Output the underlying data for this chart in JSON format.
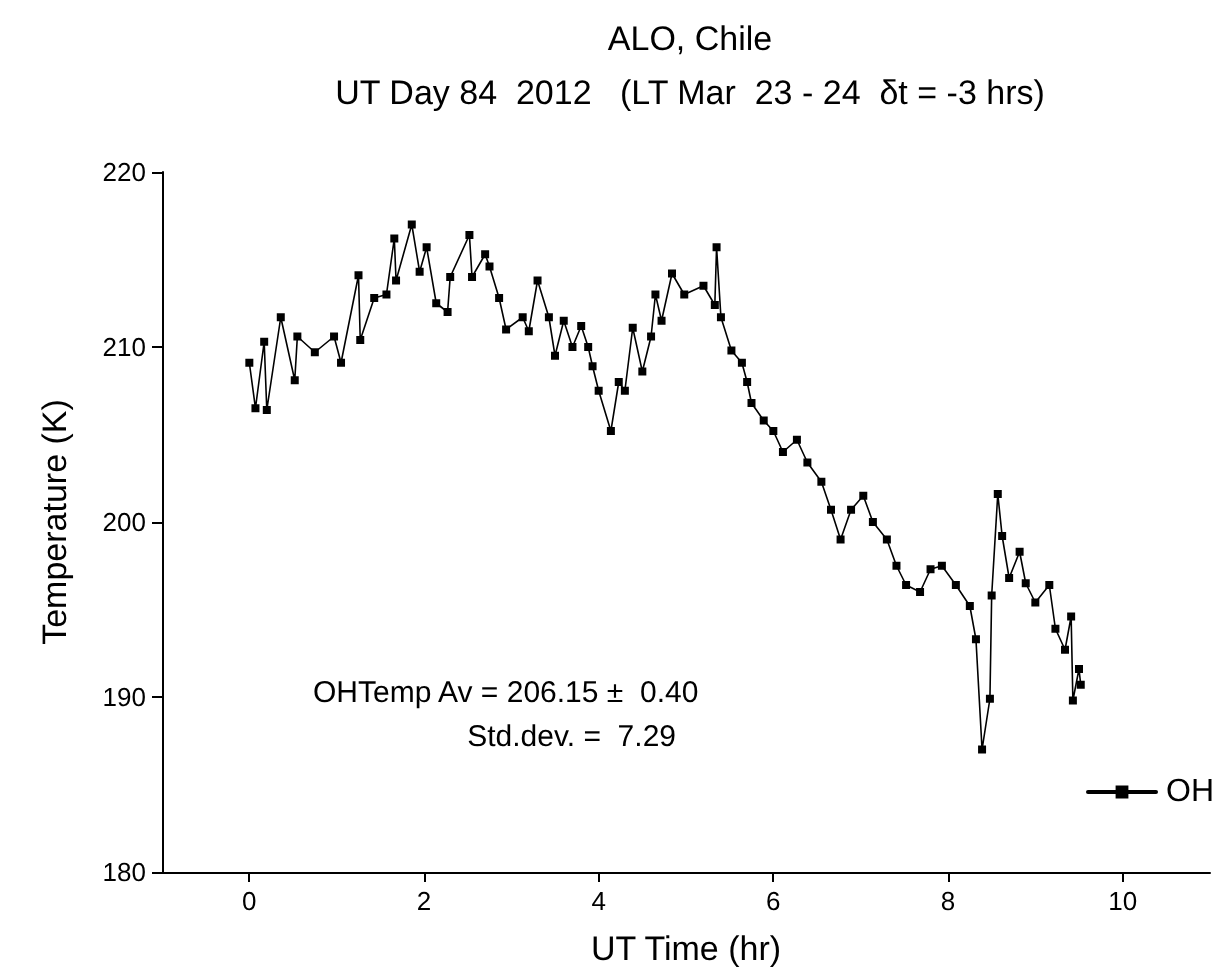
{
  "chart_data": {
    "type": "line",
    "title": "ALO, Chile",
    "subtitle": "UT Day 84  2012   (LT Mar  23 - 24  δt = -3 hrs)",
    "xlabel": "UT Time (hr)",
    "ylabel": "Temperature (K)",
    "annotations": [
      "OHTemp Av = 206.15 ±  0.40",
      "Std.dev. =  7.29"
    ],
    "xlim": [
      -1,
      11
    ],
    "xticks": [
      0,
      2,
      4,
      6,
      8,
      10
    ],
    "ylim": [
      180,
      220
    ],
    "yticks": [
      180,
      190,
      200,
      210,
      220
    ],
    "grid": false,
    "legend": "bottom right",
    "marker": "square",
    "line_style": "solid",
    "series": [
      {
        "name": "OH",
        "color": "#000000",
        "x": [
          0,
          0.07,
          0.17,
          0.2,
          0.36,
          0.52,
          0.55,
          0.75,
          0.97,
          1.05,
          1.25,
          1.27,
          1.43,
          1.57,
          1.66,
          1.68,
          1.86,
          1.95,
          2.03,
          2.14,
          2.27,
          2.3,
          2.52,
          2.55,
          2.7,
          2.75,
          2.86,
          2.94,
          3.13,
          3.2,
          3.3,
          3.43,
          3.5,
          3.6,
          3.7,
          3.8,
          3.88,
          3.93,
          4.0,
          4.14,
          4.23,
          4.3,
          4.39,
          4.5,
          4.6,
          4.65,
          4.72,
          4.84,
          4.98,
          5.2,
          5.33,
          5.35,
          5.4,
          5.52,
          5.64,
          5.7,
          5.75,
          5.89,
          6.0,
          6.11,
          6.27,
          6.39,
          6.55,
          6.66,
          6.77,
          6.89,
          7.03,
          7.14,
          7.3,
          7.41,
          7.52,
          7.68,
          7.8,
          7.93,
          8.09,
          8.25,
          8.32,
          8.39,
          8.48,
          8.5,
          8.57,
          8.62,
          8.7,
          8.82,
          8.89,
          9.0,
          9.16,
          9.23,
          9.34,
          9.41,
          9.43,
          9.5,
          9.52
        ],
        "values": [
          209.1,
          206.5,
          210.3,
          206.4,
          211.7,
          208.1,
          210.6,
          209.7,
          210.6,
          209.1,
          214.1,
          210.4,
          212.8,
          213,
          216.2,
          213.8,
          217,
          214.3,
          215.7,
          212.5,
          212,
          214,
          216.4,
          214,
          215.3,
          214.6,
          212.8,
          211,
          211.7,
          210.9,
          213.8,
          211.7,
          209.5,
          211.5,
          210,
          211.2,
          210,
          208.9,
          207.5,
          205.2,
          208,
          207.5,
          211.1,
          208.6,
          210.6,
          213,
          211.5,
          214.2,
          213,
          213.5,
          212.4,
          215.7,
          211.7,
          209.8,
          209.1,
          208,
          206.8,
          205.8,
          205.2,
          204,
          204.7,
          203.4,
          202.3,
          200.7,
          199,
          200.7,
          201.5,
          200,
          199,
          197.5,
          196.4,
          196,
          197.3,
          197.5,
          196.4,
          195.2,
          193.3,
          187,
          189.9,
          195.8,
          201.6,
          199.2,
          196.8,
          198.3,
          196.5,
          195.4,
          196.4,
          193.9,
          192.7,
          194.6,
          189.8,
          191.6,
          190.7
        ]
      }
    ]
  }
}
